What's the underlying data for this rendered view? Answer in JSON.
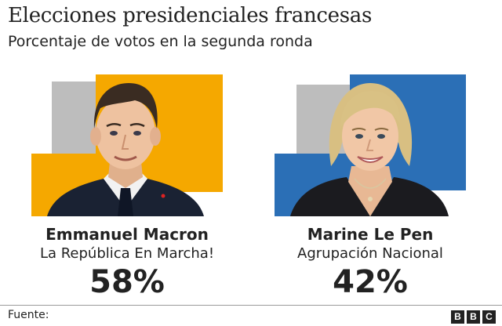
{
  "header": {
    "title": "Elecciones presidenciales francesas",
    "subtitle": "Porcentaje de votos en la segunda ronda"
  },
  "candidates": [
    {
      "name": "Emmanuel Macron",
      "party": "La República En Marcha!",
      "percent": "58%",
      "accent_color": "#f5a800",
      "secondary_color": "#bdbdbd"
    },
    {
      "name": "Marine Le Pen",
      "party": "Agrupación Nacional",
      "percent": "42%",
      "accent_color": "#2b6fb6",
      "secondary_color": "#bdbdbd"
    }
  ],
  "footer": {
    "source_label": "Fuente:",
    "logo_letters": [
      "B",
      "B",
      "C"
    ]
  }
}
